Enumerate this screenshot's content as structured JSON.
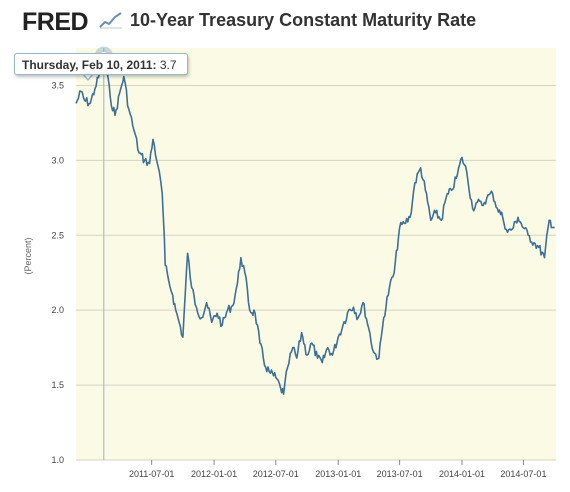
{
  "header": {
    "logo": "FRED",
    "title": "10-Year Treasury Constant Maturity Rate"
  },
  "tooltip": {
    "date": "Thursday, Feb 10, 2011:",
    "value": "3.7"
  },
  "colors": {
    "line": "#3d6f99",
    "plot_bg": "#fbfbe5",
    "grid": "#d4d4c0",
    "crosshair": "#9db1c4"
  },
  "chart_data": {
    "type": "line",
    "title": "10-Year Treasury Constant Maturity Rate",
    "xlabel": "",
    "ylabel": "(Percent)",
    "ylim": [
      1.0,
      3.75
    ],
    "xlim": [
      "2010-11-20",
      "2014-10-05"
    ],
    "grid": true,
    "y_ticks": [
      "1.0",
      "1.5",
      "2.0",
      "2.5",
      "3.0",
      "3.5"
    ],
    "x_ticks": [
      "2011-07-01",
      "2012-01-01",
      "2012-07-01",
      "2013-01-01",
      "2013-07-01",
      "2014-01-01",
      "2014-07-01"
    ],
    "highlight": {
      "x": "2011-02-10",
      "y": 3.7
    },
    "series": [
      {
        "x": [
          "2010-11-20",
          "2010-12-05",
          "2010-12-15",
          "2011-01-01",
          "2011-01-15",
          "2011-02-01",
          "2011-02-10",
          "2011-02-20",
          "2011-03-01",
          "2011-03-15",
          "2011-04-01",
          "2011-04-10",
          "2011-04-25",
          "2011-05-10",
          "2011-05-25",
          "2011-06-10",
          "2011-06-25",
          "2011-07-05",
          "2011-07-20",
          "2011-08-01",
          "2011-08-05",
          "2011-08-10",
          "2011-08-20",
          "2011-09-01",
          "2011-09-10",
          "2011-09-20",
          "2011-10-01",
          "2011-10-15",
          "2011-10-27",
          "2011-11-10",
          "2011-11-25",
          "2011-12-10",
          "2011-12-25",
          "2012-01-10",
          "2012-01-25",
          "2012-02-10",
          "2012-02-25",
          "2012-03-10",
          "2012-03-20",
          "2012-04-01",
          "2012-04-15",
          "2012-05-01",
          "2012-05-15",
          "2012-06-01",
          "2012-06-15",
          "2012-07-01",
          "2012-07-15",
          "2012-07-24",
          "2012-08-05",
          "2012-08-20",
          "2012-09-01",
          "2012-09-15",
          "2012-10-01",
          "2012-10-15",
          "2012-11-01",
          "2012-11-15",
          "2012-12-01",
          "2012-12-15",
          "2013-01-01",
          "2013-01-15",
          "2013-02-01",
          "2013-02-15",
          "2013-03-01",
          "2013-03-15",
          "2013-04-01",
          "2013-04-15",
          "2013-05-01",
          "2013-05-15",
          "2013-06-01",
          "2013-06-15",
          "2013-07-01",
          "2013-07-15",
          "2013-08-01",
          "2013-08-15",
          "2013-09-01",
          "2013-09-15",
          "2013-10-01",
          "2013-10-15",
          "2013-11-01",
          "2013-11-15",
          "2013-12-01",
          "2013-12-15",
          "2014-01-01",
          "2014-01-15",
          "2014-02-01",
          "2014-02-15",
          "2014-03-01",
          "2014-03-15",
          "2014-04-01",
          "2014-04-15",
          "2014-05-01",
          "2014-05-15",
          "2014-06-01",
          "2014-06-15",
          "2014-07-01",
          "2014-07-15",
          "2014-08-01",
          "2014-08-15",
          "2014-09-01",
          "2014-09-15",
          "2014-10-01"
        ],
        "values": [
          3.38,
          3.46,
          3.4,
          3.38,
          3.48,
          3.6,
          3.7,
          3.58,
          3.42,
          3.3,
          3.48,
          3.56,
          3.34,
          3.2,
          3.05,
          3.0,
          2.98,
          3.14,
          2.96,
          2.78,
          2.6,
          2.3,
          2.2,
          2.1,
          2.0,
          1.92,
          1.82,
          2.38,
          2.15,
          2.02,
          1.95,
          2.05,
          1.92,
          1.98,
          1.9,
          2.0,
          2.03,
          2.18,
          2.35,
          2.25,
          2.0,
          1.98,
          1.78,
          1.62,
          1.58,
          1.55,
          1.48,
          1.44,
          1.62,
          1.75,
          1.68,
          1.85,
          1.7,
          1.78,
          1.68,
          1.65,
          1.75,
          1.7,
          1.82,
          1.9,
          2.0,
          2.02,
          1.95,
          2.05,
          1.88,
          1.72,
          1.68,
          1.95,
          2.15,
          2.25,
          2.55,
          2.58,
          2.62,
          2.85,
          2.95,
          2.8,
          2.6,
          2.65,
          2.6,
          2.75,
          2.8,
          2.88,
          3.02,
          2.92,
          2.68,
          2.72,
          2.7,
          2.75,
          2.78,
          2.68,
          2.62,
          2.52,
          2.55,
          2.62,
          2.55,
          2.5,
          2.45,
          2.42,
          2.35,
          2.6,
          2.55
        ]
      }
    ]
  }
}
